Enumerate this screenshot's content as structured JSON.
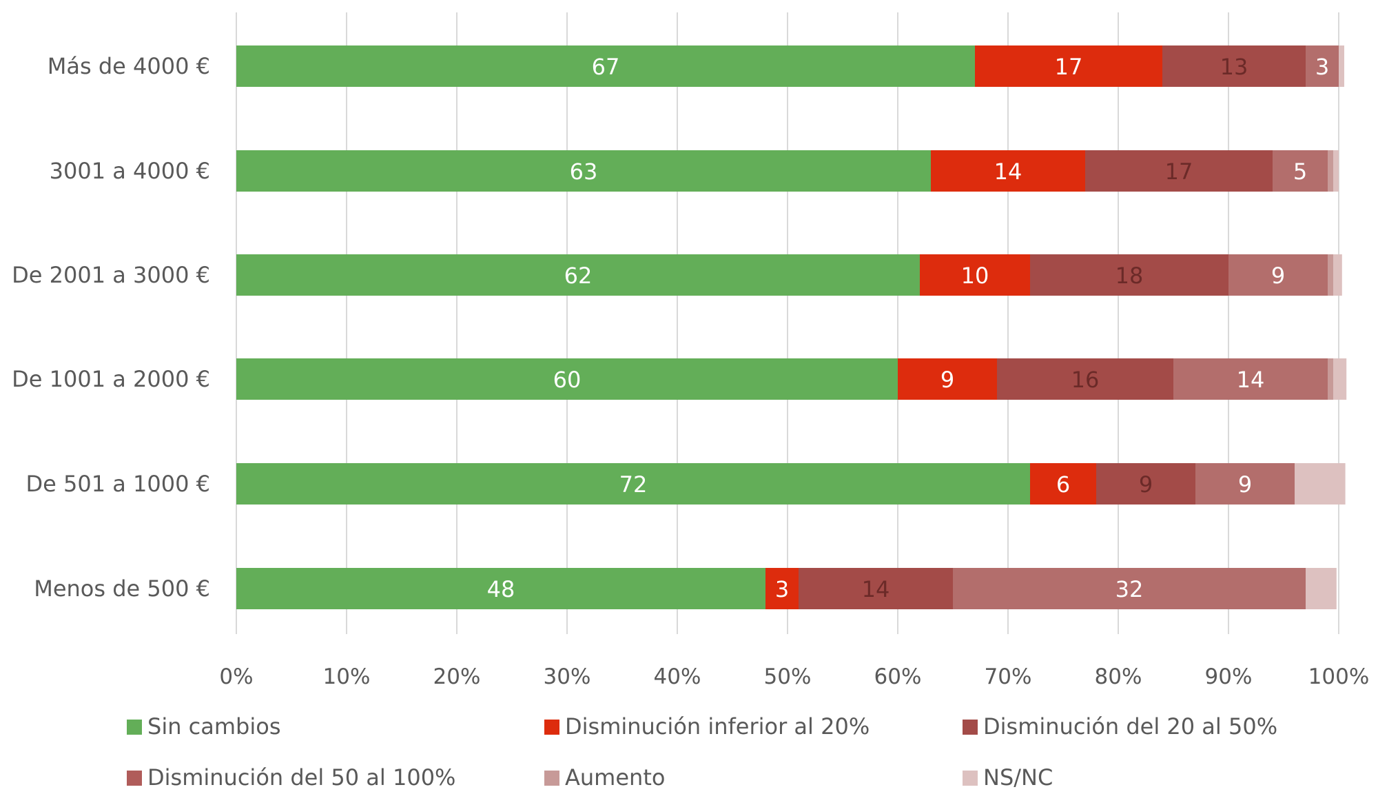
{
  "chart_data": {
    "type": "bar",
    "orientation": "horizontal",
    "stacked": true,
    "percent": true,
    "title": "",
    "xlabel": "",
    "ylabel": "",
    "xlim": [
      0,
      100
    ],
    "x_tick_labels": [
      "0%",
      "10%",
      "20%",
      "30%",
      "40%",
      "50%",
      "60%",
      "70%",
      "80%",
      "90%",
      "100%"
    ],
    "grid": true,
    "legend_position": "bottom",
    "categories": [
      "Más de 4000 €",
      "3001 a 4000 €",
      "De 2001 a 3000 €",
      "De 1001 a 2000 €",
      "De 501 a 1000 €",
      "Menos de 500 €"
    ],
    "series": [
      {
        "name": "Sin cambios",
        "color": "#63AE58",
        "label_color": "#FFFFFF",
        "values": [
          67,
          63,
          62,
          60,
          72,
          48
        ],
        "labels": [
          "67",
          "63",
          "62",
          "60",
          "72",
          "48"
        ]
      },
      {
        "name": "Disminución inferior al 20%",
        "color": "#DD2C0D",
        "label_color": "#FFFFFF",
        "values": [
          17,
          14,
          10,
          9,
          6,
          3
        ],
        "labels": [
          "17",
          "14",
          "10",
          "9",
          "6",
          "3"
        ]
      },
      {
        "name": "Disminución del 20 al 50%",
        "color": "#A34B48",
        "label_color": "#6B2A28",
        "values": [
          13,
          17,
          18,
          16,
          9,
          14
        ],
        "labels": [
          "13",
          "17",
          "18",
          "16",
          "9",
          "14"
        ]
      },
      {
        "name": "Disminución del 50 al 100%",
        "color": "#B36E6C",
        "label_color": "#FFFFFF",
        "values": [
          3,
          5,
          9,
          14,
          9,
          32
        ],
        "labels": [
          "3",
          "5",
          "9",
          "14",
          "9",
          "32"
        ]
      },
      {
        "name": "Aumento",
        "color": "#C79A98",
        "label_color": "#FFFFFF",
        "values": [
          0,
          0.5,
          0.5,
          0.5,
          0,
          0
        ],
        "labels": [
          "",
          "",
          "",
          "",
          "",
          ""
        ]
      },
      {
        "name": "NS/NC",
        "color": "#DDC1C0",
        "label_color": "#FFFFFF",
        "values": [
          0.5,
          0.5,
          0.8,
          1.2,
          4.6,
          2.8
        ],
        "labels": [
          "",
          "",
          "",
          "",
          "",
          ""
        ]
      }
    ],
    "legend_swatch_colors": [
      "#63AE58",
      "#DD2C0D",
      "#A34B48",
      "#B05C5A",
      "#C79A98",
      "#DDC1C0"
    ]
  }
}
